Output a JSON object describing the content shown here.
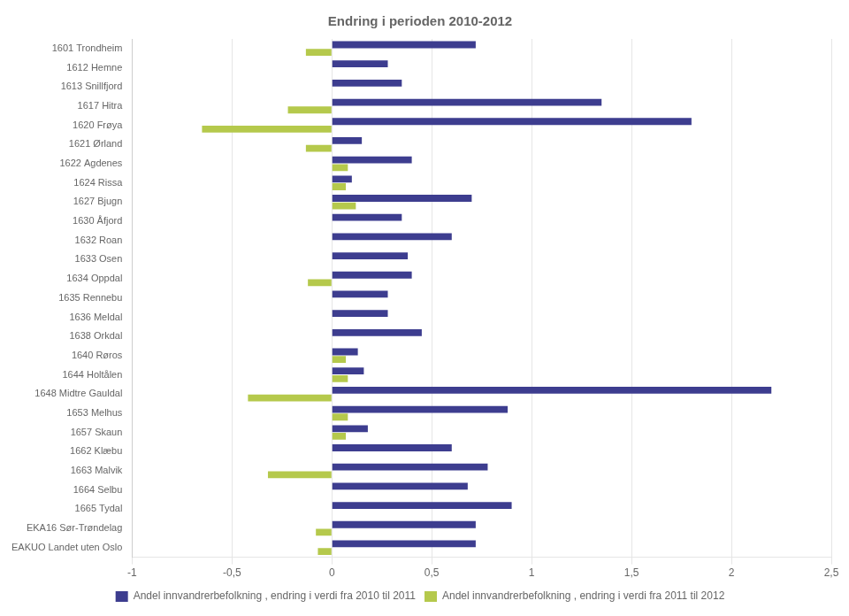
{
  "chart_data": {
    "type": "bar",
    "orientation": "horizontal",
    "title": "Endring i perioden 2010-2012",
    "categories": [
      "1601 Trondheim",
      "1612 Hemne",
      "1613 Snillfjord",
      "1617 Hitra",
      "1620 Frøya",
      "1621 Ørland",
      "1622 Agdenes",
      "1624 Rissa",
      "1627 Bjugn",
      "1630 Åfjord",
      "1632 Roan",
      "1633 Osen",
      "1634 Oppdal",
      "1635 Rennebu",
      "1636 Meldal",
      "1638 Orkdal",
      "1640 Røros",
      "1644 Holtålen",
      "1648 Midtre Gauldal",
      "1653 Melhus",
      "1657 Skaun",
      "1662 Klæbu",
      "1663 Malvik",
      "1664 Selbu",
      "1665 Tydal",
      "EKA16 Sør-Trøndelag",
      "EAKUO Landet uten Oslo"
    ],
    "series": [
      {
        "name": "Andel innvandrerbefolkning , endring i verdi fra 2010 til 2011",
        "color": "#3d3d8f",
        "values": [
          0.72,
          0.28,
          0.35,
          1.35,
          1.8,
          0.15,
          0.4,
          0.1,
          0.7,
          0.35,
          0.6,
          0.38,
          0.4,
          0.28,
          0.28,
          0.45,
          0.13,
          0.16,
          2.2,
          0.88,
          0.18,
          0.6,
          0.78,
          0.68,
          0.9,
          0.72,
          0.72
        ]
      },
      {
        "name": "Andel innvandrerbefolkning , endring i verdi fra 2011 til 2012",
        "color": "#b5c94c",
        "values": [
          -0.13,
          0.0,
          0.0,
          -0.22,
          -0.65,
          -0.13,
          0.08,
          0.07,
          0.12,
          0.0,
          0.0,
          0.0,
          -0.12,
          0.0,
          0.0,
          0.0,
          0.07,
          0.08,
          -0.42,
          0.08,
          0.07,
          0.0,
          -0.32,
          0.0,
          0.0,
          -0.08,
          -0.07
        ]
      }
    ],
    "xlim": [
      -1,
      2.5
    ],
    "xticks": [
      -1,
      {
        "value": -0.5,
        "label": "-0,5"
      },
      0,
      {
        "value": 0.5,
        "label": "0,5"
      },
      1,
      {
        "value": 1.5,
        "label": "1,5"
      },
      2,
      {
        "value": 2.5,
        "label": "2,5"
      }
    ],
    "grid": true,
    "legend": "bottom"
  }
}
